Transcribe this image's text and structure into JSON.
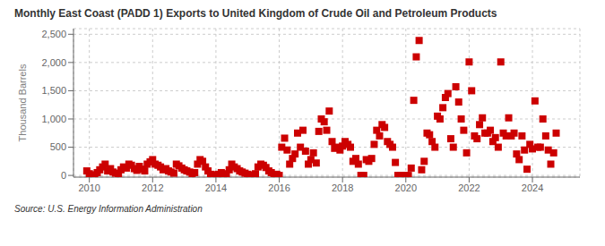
{
  "chart_data": {
    "type": "scatter",
    "title": "Monthly East Coast (PADD 1) Exports to United Kingdom of Crude Oil and Petroleum Products",
    "ylabel": "Thousand Barrels",
    "annotations": [
      "Source: U.S. Energy Information Administration"
    ],
    "color": "#cc0000",
    "marker": "square",
    "grid": true,
    "xlim": [
      2009.5,
      2025.5
    ],
    "ylim": [
      -30,
      2600
    ],
    "xticks": [
      2010,
      2012,
      2014,
      2016,
      2018,
      2020,
      2022,
      2024
    ],
    "yticks": [
      0,
      500,
      {
        "value": 1000,
        "label": "1,000"
      },
      {
        "value": 1500,
        "label": "1,500"
      },
      {
        "value": 2000,
        "label": "2,000"
      },
      {
        "value": 2500,
        "label": "2,500"
      }
    ],
    "x": [
      2009.92,
      2010.0,
      2010.08,
      2010.17,
      2010.25,
      2010.33,
      2010.42,
      2010.5,
      2010.58,
      2010.67,
      2010.75,
      2010.83,
      2010.92,
      2011.0,
      2011.08,
      2011.17,
      2011.25,
      2011.33,
      2011.42,
      2011.5,
      2011.58,
      2011.67,
      2011.75,
      2011.83,
      2011.92,
      2012.0,
      2012.08,
      2012.17,
      2012.25,
      2012.33,
      2012.42,
      2012.5,
      2012.58,
      2012.67,
      2012.75,
      2012.83,
      2012.92,
      2013.0,
      2013.08,
      2013.17,
      2013.25,
      2013.33,
      2013.42,
      2013.5,
      2013.58,
      2013.67,
      2013.75,
      2013.83,
      2013.92,
      2014.0,
      2014.08,
      2014.17,
      2014.25,
      2014.33,
      2014.42,
      2014.5,
      2014.58,
      2014.67,
      2014.75,
      2014.83,
      2014.92,
      2015.0,
      2015.08,
      2015.17,
      2015.25,
      2015.33,
      2015.42,
      2015.5,
      2015.58,
      2015.67,
      2015.75,
      2015.83,
      2015.92,
      2016.0,
      2016.08,
      2016.17,
      2016.25,
      2016.33,
      2016.42,
      2016.5,
      2016.58,
      2016.67,
      2016.75,
      2016.83,
      2016.92,
      2017.0,
      2017.08,
      2017.17,
      2017.25,
      2017.33,
      2017.42,
      2017.5,
      2017.58,
      2017.67,
      2017.75,
      2017.83,
      2017.92,
      2018.0,
      2018.08,
      2018.17,
      2018.25,
      2018.33,
      2018.42,
      2018.5,
      2018.58,
      2018.67,
      2018.75,
      2018.83,
      2018.92,
      2019.0,
      2019.08,
      2019.17,
      2019.25,
      2019.33,
      2019.42,
      2019.5,
      2019.58,
      2019.67,
      2019.75,
      2019.83,
      2019.92,
      2020.0,
      2020.08,
      2020.17,
      2020.25,
      2020.33,
      2020.42,
      2020.5,
      2020.58,
      2020.67,
      2020.75,
      2020.83,
      2020.92,
      2021.0,
      2021.08,
      2021.17,
      2021.25,
      2021.33,
      2021.42,
      2021.5,
      2021.58,
      2021.67,
      2021.75,
      2021.83,
      2021.92,
      2022.0,
      2022.08,
      2022.17,
      2022.25,
      2022.33,
      2022.42,
      2022.5,
      2022.58,
      2022.67,
      2022.75,
      2022.83,
      2022.92,
      2023.0,
      2023.08,
      2023.17,
      2023.25,
      2023.33,
      2023.42,
      2023.5,
      2023.58,
      2023.67,
      2023.75,
      2023.83,
      2023.92,
      2024.0,
      2024.08,
      2024.17,
      2024.25,
      2024.33,
      2024.42,
      2024.5,
      2024.58,
      2024.67,
      2024.75
    ],
    "values": [
      80,
      30,
      10,
      5,
      50,
      100,
      150,
      200,
      80,
      120,
      60,
      40,
      30,
      100,
      150,
      130,
      200,
      180,
      120,
      90,
      160,
      110,
      80,
      200,
      240,
      280,
      200,
      180,
      150,
      100,
      120,
      80,
      60,
      40,
      200,
      170,
      130,
      100,
      80,
      60,
      20,
      50,
      200,
      280,
      250,
      150,
      80,
      20,
      10,
      5,
      20,
      50,
      0,
      30,
      100,
      200,
      150,
      120,
      80,
      60,
      40,
      20,
      10,
      0,
      30,
      150,
      200,
      180,
      140,
      80,
      50,
      0,
      20,
      0,
      500,
      660,
      450,
      200,
      300,
      380,
      750,
      500,
      800,
      430,
      200,
      280,
      400,
      220,
      780,
      1000,
      950,
      800,
      1140,
      600,
      480,
      500,
      450,
      520,
      600,
      550,
      500,
      250,
      300,
      200,
      0,
      0,
      280,
      250,
      300,
      550,
      800,
      700,
      900,
      850,
      600,
      550,
      500,
      230,
      0,
      0,
      0,
      0,
      0,
      130,
      1330,
      2100,
      2390,
      100,
      250,
      750,
      720,
      600,
      500,
      1050,
      1000,
      1200,
      1380,
      1450,
      650,
      500,
      1570,
      1300,
      1000,
      800,
      400,
      2010,
      1500,
      700,
      650,
      900,
      1020,
      750,
      750,
      800,
      600,
      670,
      500,
      2010,
      750,
      700,
      1020,
      700,
      750,
      380,
      280,
      700,
      450,
      110,
      550,
      470,
      1320,
      500,
      500,
      1000,
      700,
      450,
      200,
      400,
      750
    ]
  }
}
